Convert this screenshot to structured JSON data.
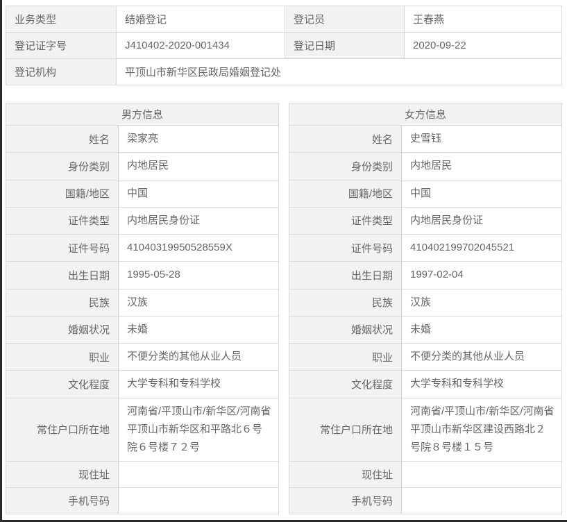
{
  "colors": {
    "label_cell_bg": "#f2f2f2",
    "border": "#d9d9d9",
    "text": "#666666",
    "screen_edge": "#2a2a2a"
  },
  "registration": {
    "row1": {
      "label1": "业务类型",
      "value1": "结婚登记",
      "label2": "登记员",
      "value2": "王春燕"
    },
    "row2": {
      "label1": "登记证字号",
      "value1": "J410402-2020-001434",
      "label2": "登记日期",
      "value2": "2020-09-22"
    },
    "row3": {
      "label": "登记机构",
      "value": "平顶山市新华区民政局婚姻登记处"
    }
  },
  "groom": {
    "title": "男方信息",
    "fields": [
      {
        "label": "姓名",
        "value": "梁家亮"
      },
      {
        "label": "身份类别",
        "value": "内地居民"
      },
      {
        "label": "国籍/地区",
        "value": "中国"
      },
      {
        "label": "证件类型",
        "value": "内地居民身份证"
      },
      {
        "label": "证件号码",
        "value": "41040319950528559X"
      },
      {
        "label": "出生日期",
        "value": "1995-05-28"
      },
      {
        "label": "民族",
        "value": "汉族"
      },
      {
        "label": "婚姻状况",
        "value": "未婚"
      },
      {
        "label": "职业",
        "value": "不便分类的其他从业人员"
      },
      {
        "label": "文化程度",
        "value": "大学专科和专科学校"
      },
      {
        "label": "常住户口所在地",
        "value": "河南省/平顶山市/新华区/河南省平顶山市新华区和平路北６号院６号楼７２号"
      },
      {
        "label": "现住址",
        "value": ""
      },
      {
        "label": "手机号码",
        "value": ""
      }
    ]
  },
  "bride": {
    "title": "女方信息",
    "fields": [
      {
        "label": "姓名",
        "value": "史雪钰"
      },
      {
        "label": "身份类别",
        "value": "内地居民"
      },
      {
        "label": "国籍/地区",
        "value": "中国"
      },
      {
        "label": "证件类型",
        "value": "内地居民身份证"
      },
      {
        "label": "证件号码",
        "value": "410402199702045521"
      },
      {
        "label": "出生日期",
        "value": "1997-02-04"
      },
      {
        "label": "民族",
        "value": "汉族"
      },
      {
        "label": "婚姻状况",
        "value": "未婚"
      },
      {
        "label": "职业",
        "value": "不便分类的其他从业人员"
      },
      {
        "label": "文化程度",
        "value": "大学专科和专科学校"
      },
      {
        "label": "常住户口所在地",
        "value": "河南省/平顶山市/新华区/河南省平顶山市新华区建设西路北２号院８号楼１５号"
      },
      {
        "label": "现住址",
        "value": ""
      },
      {
        "label": "手机号码",
        "value": ""
      }
    ]
  }
}
